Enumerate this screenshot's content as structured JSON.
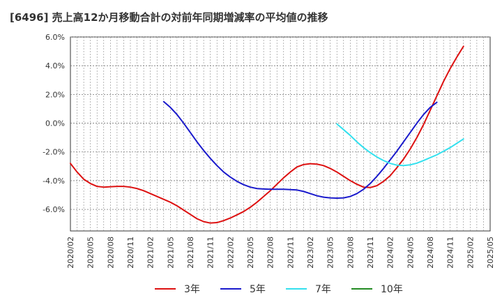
{
  "title": "[6496]  売上高12か月移動合計の対前年同期増減率の平均値の推移",
  "chart_data": {
    "type": "line",
    "title": "[6496]  売上高12か月移動合計の対前年同期増減率の平均値の推移",
    "xlabel": "",
    "ylabel": "",
    "ylim": [
      -7.5,
      6.0
    ],
    "yticks": [
      "6.0%",
      "4.0%",
      "2.0%",
      "0.0%",
      "-2.0%",
      "-4.0%",
      "-6.0%"
    ],
    "ytick_values": [
      6,
      4,
      2,
      0,
      -2,
      -4,
      -6
    ],
    "xticks": [
      "2020/02",
      "2020/05",
      "2020/08",
      "2020/11",
      "2021/02",
      "2021/05",
      "2021/08",
      "2021/11",
      "2022/02",
      "2022/05",
      "2022/08",
      "2022/11",
      "2023/02",
      "2023/05",
      "2023/08",
      "2023/11",
      "2024/02",
      "2024/05",
      "2024/08",
      "2024/11",
      "2025/02",
      "2025/05"
    ],
    "grid": true,
    "legend_position": "bottom",
    "series": [
      {
        "name": "3年",
        "color": "#dd1111",
        "start_index": 0,
        "values": [
          -2.8,
          -3.4,
          -3.9,
          -4.2,
          -4.4,
          -4.45,
          -4.42,
          -4.4,
          -4.4,
          -4.45,
          -4.55,
          -4.7,
          -4.9,
          -5.1,
          -5.3,
          -5.5,
          -5.75,
          -6.05,
          -6.35,
          -6.65,
          -6.85,
          -6.95,
          -6.92,
          -6.78,
          -6.6,
          -6.38,
          -6.15,
          -5.85,
          -5.5,
          -5.1,
          -4.7,
          -4.25,
          -3.8,
          -3.4,
          -3.05,
          -2.88,
          -2.82,
          -2.85,
          -2.95,
          -3.15,
          -3.4,
          -3.7,
          -4.0,
          -4.25,
          -4.45,
          -4.48,
          -4.35,
          -4.05,
          -3.65,
          -3.1,
          -2.5,
          -1.8,
          -1.0,
          -0.1,
          0.9,
          1.9,
          2.9,
          3.8,
          4.6,
          5.35
        ]
      },
      {
        "name": "5年",
        "color": "#1a1acc",
        "start_index": 14,
        "values": [
          1.5,
          1.1,
          0.6,
          0.0,
          -0.65,
          -1.3,
          -1.9,
          -2.45,
          -2.95,
          -3.4,
          -3.75,
          -4.05,
          -4.28,
          -4.45,
          -4.55,
          -4.58,
          -4.6,
          -4.6,
          -4.6,
          -4.62,
          -4.65,
          -4.75,
          -4.9,
          -5.05,
          -5.15,
          -5.2,
          -5.22,
          -5.2,
          -5.1,
          -4.9,
          -4.6,
          -4.2,
          -3.7,
          -3.15,
          -2.55,
          -1.95,
          -1.3,
          -0.65,
          0.0,
          0.6,
          1.1,
          1.45
        ]
      },
      {
        "name": "7年",
        "color": "#33e0ee",
        "start_index": 40,
        "values": [
          -0.05,
          -0.45,
          -0.85,
          -1.3,
          -1.7,
          -2.05,
          -2.35,
          -2.6,
          -2.8,
          -2.92,
          -2.95,
          -2.9,
          -2.78,
          -2.6,
          -2.4,
          -2.2,
          -1.95,
          -1.7,
          -1.4,
          -1.1
        ]
      },
      {
        "name": "10年",
        "color": "#228b22",
        "start_index": 0,
        "values": []
      }
    ]
  }
}
